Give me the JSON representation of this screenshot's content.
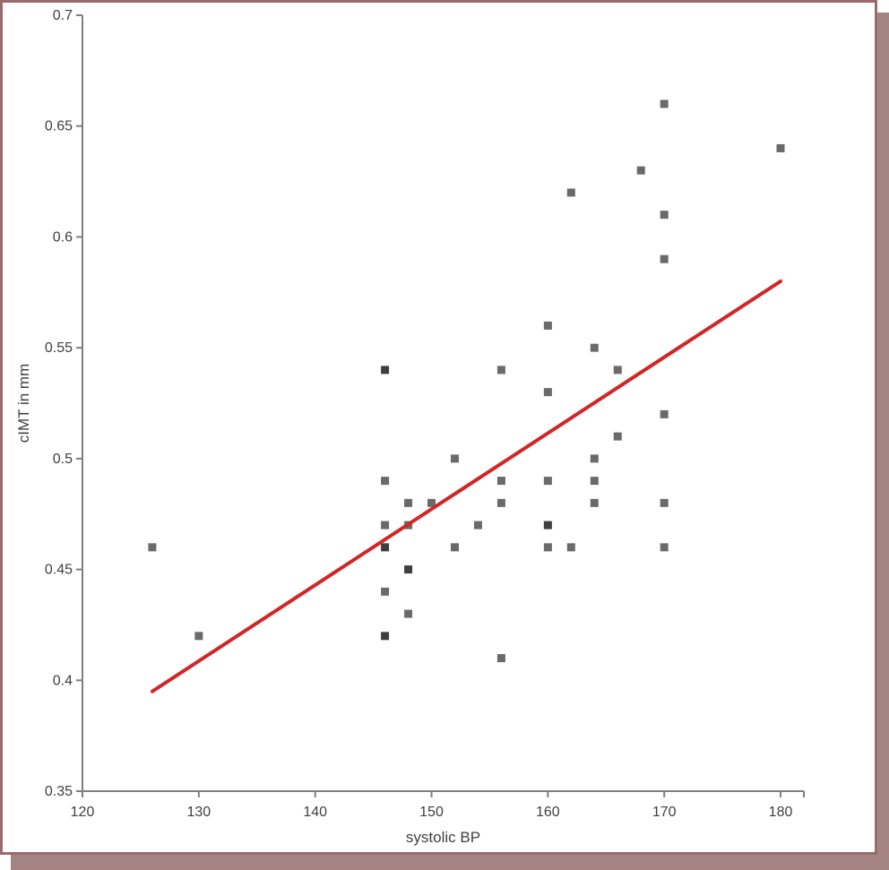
{
  "page": {
    "background": "#ffffff"
  },
  "frame": {
    "border_color": "#9a6a6a",
    "shadow_color": "#a58383",
    "fill": "#ffffff"
  },
  "chart_data": {
    "type": "scatter",
    "title": "",
    "xlabel": "systolic BP",
    "ylabel": "cIMT in mm",
    "xlim": [
      120,
      182
    ],
    "ylim": [
      0.35,
      0.7
    ],
    "x_ticks": [
      120,
      130,
      140,
      150,
      160,
      170,
      180
    ],
    "x_tick_labels": [
      "120",
      "130",
      "140",
      "150",
      "160",
      "170",
      "180"
    ],
    "y_ticks": [
      0.35,
      0.4,
      0.45,
      0.5,
      0.55,
      0.6,
      0.65,
      0.7
    ],
    "y_tick_labels": [
      "0.35",
      "0.4",
      "0.45",
      "0.5",
      "0.55",
      "0.6",
      "0.65",
      "0.7"
    ],
    "grid": false,
    "legend": "none",
    "axis_color": "#7f7f7f",
    "label_color": "#3f3f3f",
    "marker": {
      "shape": "square",
      "size": 9,
      "color": "#6a6a6a",
      "overlap_color": "#3f3f3f"
    },
    "points": [
      {
        "x": 126,
        "y": 0.46
      },
      {
        "x": 130,
        "y": 0.42
      },
      {
        "x": 146,
        "y": 0.54,
        "dark": true
      },
      {
        "x": 146,
        "y": 0.49
      },
      {
        "x": 146,
        "y": 0.47
      },
      {
        "x": 146,
        "y": 0.46,
        "dark": true
      },
      {
        "x": 146,
        "y": 0.44
      },
      {
        "x": 146,
        "y": 0.42,
        "dark": true
      },
      {
        "x": 148,
        "y": 0.48
      },
      {
        "x": 148,
        "y": 0.47
      },
      {
        "x": 148,
        "y": 0.45,
        "dark": true
      },
      {
        "x": 148,
        "y": 0.43
      },
      {
        "x": 150,
        "y": 0.48
      },
      {
        "x": 152,
        "y": 0.5
      },
      {
        "x": 152,
        "y": 0.46
      },
      {
        "x": 154,
        "y": 0.47
      },
      {
        "x": 156,
        "y": 0.54
      },
      {
        "x": 156,
        "y": 0.49
      },
      {
        "x": 156,
        "y": 0.48
      },
      {
        "x": 156,
        "y": 0.41
      },
      {
        "x": 160,
        "y": 0.56
      },
      {
        "x": 160,
        "y": 0.53
      },
      {
        "x": 160,
        "y": 0.49
      },
      {
        "x": 160,
        "y": 0.47,
        "dark": true
      },
      {
        "x": 160,
        "y": 0.46
      },
      {
        "x": 162,
        "y": 0.62
      },
      {
        "x": 162,
        "y": 0.46
      },
      {
        "x": 164,
        "y": 0.55
      },
      {
        "x": 164,
        "y": 0.5
      },
      {
        "x": 164,
        "y": 0.49
      },
      {
        "x": 164,
        "y": 0.48
      },
      {
        "x": 166,
        "y": 0.54
      },
      {
        "x": 166,
        "y": 0.51
      },
      {
        "x": 168,
        "y": 0.63
      },
      {
        "x": 170,
        "y": 0.66
      },
      {
        "x": 170,
        "y": 0.61
      },
      {
        "x": 170,
        "y": 0.59
      },
      {
        "x": 170,
        "y": 0.52
      },
      {
        "x": 170,
        "y": 0.48
      },
      {
        "x": 170,
        "y": 0.46
      },
      {
        "x": 180,
        "y": 0.64
      }
    ],
    "trendline": {
      "type": "linear",
      "x_start": 126,
      "y_start": 0.395,
      "x_end": 180,
      "y_end": 0.58,
      "color": "#d02626",
      "width": 4
    }
  }
}
